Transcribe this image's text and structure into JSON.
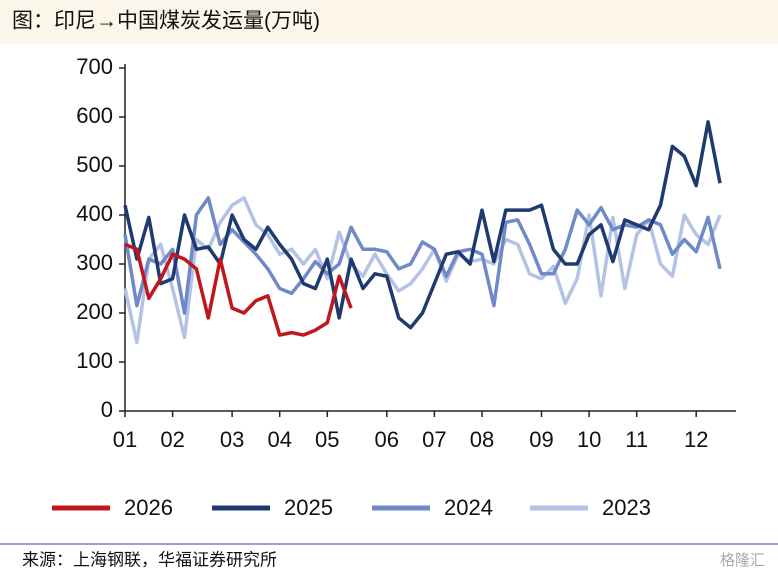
{
  "chart_data": {
    "type": "line",
    "title": "图：印尼→中国煤炭发运量(万吨)",
    "source": "来源：上海钢联，华福证券研究所",
    "watermark": "格隆汇",
    "categories": [
      "01",
      null,
      null,
      null,
      "02",
      null,
      null,
      null,
      null,
      "03",
      null,
      null,
      null,
      "04",
      null,
      null,
      null,
      "05",
      null,
      null,
      null,
      null,
      "06",
      null,
      null,
      null,
      "07",
      null,
      null,
      null,
      "08",
      null,
      null,
      null,
      null,
      "09",
      null,
      null,
      null,
      "10",
      null,
      null,
      null,
      "11",
      null,
      null,
      null,
      null,
      "12",
      null,
      null,
      null
    ],
    "ylim": [
      0,
      700
    ],
    "yticks": [
      0,
      100,
      200,
      300,
      400,
      500,
      600,
      700
    ],
    "series": [
      {
        "name": "2026",
        "color": "#c0161d",
        "values": [
          340,
          330,
          230,
          270,
          320,
          310,
          290,
          190,
          310,
          210,
          200,
          225,
          235,
          155,
          160,
          155,
          165,
          180,
          275,
          210,
          null,
          null,
          null,
          null,
          null,
          null,
          null,
          null,
          null,
          null,
          null,
          null,
          null,
          null,
          null,
          null,
          null,
          null,
          null,
          null,
          null,
          null,
          null,
          null,
          null,
          null,
          null,
          null,
          null,
          null,
          null,
          null
        ]
      },
      {
        "name": "2025",
        "color": "#1f3a6e",
        "values": [
          420,
          310,
          395,
          260,
          270,
          400,
          330,
          335,
          300,
          400,
          350,
          330,
          375,
          340,
          310,
          260,
          250,
          310,
          190,
          310,
          250,
          280,
          275,
          190,
          170,
          200,
          260,
          320,
          325,
          300,
          410,
          305,
          410,
          410,
          410,
          420,
          330,
          300,
          300,
          360,
          380,
          305,
          390,
          380,
          370,
          420,
          540,
          520,
          460,
          590,
          465,
          null
        ]
      },
      {
        "name": "2024",
        "color": "#7089c8",
        "values": [
          360,
          215,
          310,
          300,
          330,
          200,
          400,
          435,
          340,
          370,
          345,
          320,
          290,
          250,
          240,
          270,
          305,
          280,
          300,
          375,
          330,
          330,
          325,
          290,
          300,
          345,
          330,
          275,
          325,
          330,
          320,
          215,
          385,
          390,
          340,
          280,
          280,
          330,
          410,
          380,
          415,
          370,
          380,
          375,
          390,
          380,
          320,
          350,
          325,
          395,
          290,
          null
        ]
      },
      {
        "name": "2023",
        "color": "#b4c2e3",
        "values": [
          250,
          140,
          310,
          340,
          250,
          150,
          350,
          330,
          385,
          420,
          435,
          380,
          360,
          320,
          330,
          300,
          330,
          270,
          365,
          300,
          275,
          320,
          280,
          245,
          260,
          290,
          330,
          265,
          320,
          305,
          310,
          300,
          350,
          340,
          280,
          270,
          295,
          220,
          270,
          400,
          235,
          395,
          250,
          360,
          390,
          300,
          275,
          400,
          360,
          340,
          400,
          null
        ]
      }
    ]
  }
}
